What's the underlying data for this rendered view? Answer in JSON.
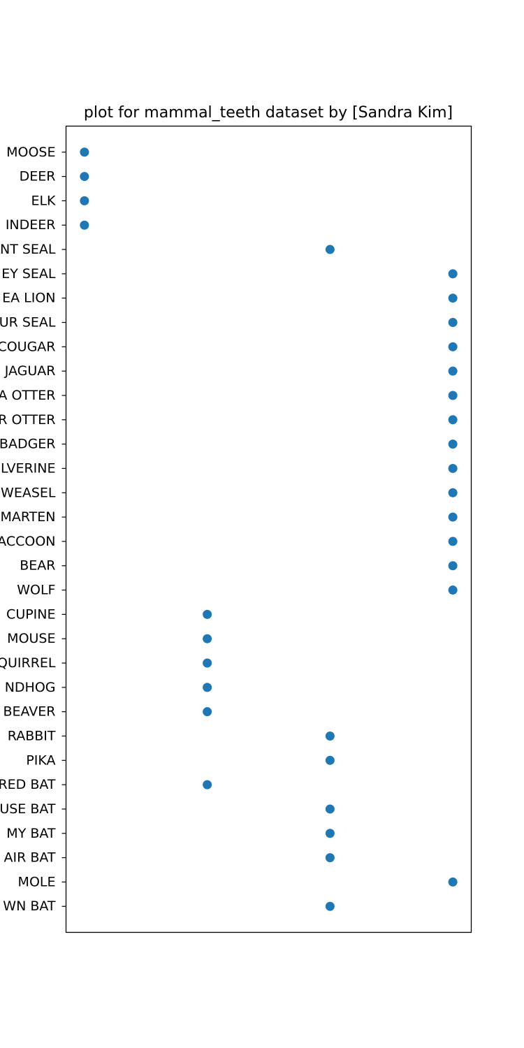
{
  "chart_data": {
    "type": "scatter",
    "title": "plot for mammal_teeth dataset by [Sandra Kim]",
    "xlabel": "",
    "ylabel": "",
    "x_ticks_visible": false,
    "grid": false,
    "legend": "none",
    "marker_color": "#1f77b4",
    "x_range": [
      -0.15,
      3.15
    ],
    "categories": [
      "BROWN BAT",
      "MOLE",
      "SILVER HAIR BAT",
      "PIGMY BAT",
      "HOUSE BAT",
      "RED BAT",
      "PIKA",
      "RABBIT",
      "BEAVER",
      "GROUNDHOG",
      "GRAY SQUIRREL",
      "HOUSE MOUSE",
      "PORCUPINE",
      "WOLF",
      "BEAR",
      "RACCOON",
      "MARTEN",
      "WEASEL",
      "WOLVERINE",
      "BADGER",
      "RIVER OTTER",
      "SEA OTTER",
      "JAGUAR",
      "COUGAR",
      "FUR SEAL",
      "SEA LION",
      "GREY SEAL",
      "ELEPHANT SEAL",
      "REINDEER",
      "ELK",
      "DEER",
      "MOOSE"
    ],
    "tick_labels_visible": [
      "WN BAT",
      "MOLE",
      "AIR BAT",
      "MY BAT",
      "USE BAT",
      "RED BAT",
      "PIKA",
      "RABBIT",
      "BEAVER",
      "NDHOG",
      "QUIRREL",
      "MOUSE",
      "CUPINE",
      "WOLF",
      "BEAR",
      "ACCOON",
      "MARTEN",
      "WEASEL",
      "LVERINE",
      "BADGER",
      "R OTTER",
      "A OTTER",
      "JAGUAR",
      "COUGAR",
      "UR SEAL",
      "EA LION",
      "EY SEAL",
      "NT SEAL",
      "INDEER",
      "ELK",
      "DEER",
      "MOOSE"
    ],
    "x": [
      2,
      3,
      2,
      2,
      2,
      1,
      2,
      2,
      1,
      1,
      1,
      1,
      1,
      3,
      3,
      3,
      3,
      3,
      3,
      3,
      3,
      3,
      3,
      3,
      3,
      3,
      3,
      2,
      0,
      0,
      0,
      0
    ]
  }
}
